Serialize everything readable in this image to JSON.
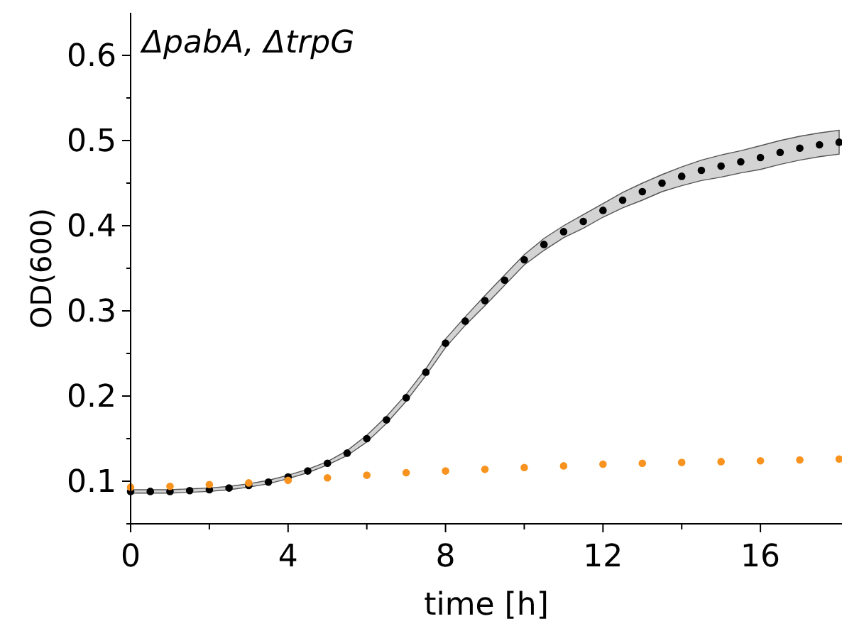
{
  "chart_data": {
    "type": "scatter",
    "title": "ΔpabA, ΔtrpG",
    "xlabel": "time [h]",
    "ylabel": "OD(600)",
    "xlim": [
      0,
      18
    ],
    "ylim": [
      0.05,
      0.65
    ],
    "xticks": [
      0,
      {
        "value": 2,
        "label": null
      },
      4,
      {
        "value": 6,
        "label": null
      },
      8,
      {
        "value": 10,
        "label": null
      },
      12,
      {
        "value": 14,
        "label": null
      },
      16
    ],
    "yticks": [
      {
        "value": 0.05,
        "label": null
      },
      0.1,
      {
        "value": 0.15,
        "label": null
      },
      0.2,
      {
        "value": 0.25,
        "label": null
      },
      0.3,
      {
        "value": 0.35,
        "label": null
      },
      0.4,
      {
        "value": 0.45,
        "label": null
      },
      0.5,
      {
        "value": 0.55,
        "label": null
      },
      0.6
    ],
    "marker": "circle",
    "grid": false,
    "series": [
      {
        "color": "#f7931e",
        "x": [
          0,
          1,
          2,
          3,
          4,
          5,
          6,
          7,
          8,
          9,
          10,
          11,
          12,
          13,
          14,
          15,
          16,
          17,
          18
        ],
        "values": [
          0.093,
          0.094,
          0.096,
          0.098,
          0.101,
          0.104,
          0.107,
          0.11,
          0.112,
          0.114,
          0.116,
          0.118,
          0.12,
          0.121,
          0.122,
          0.123,
          0.124,
          0.125,
          0.126
        ]
      },
      {
        "color": "#000000",
        "x": [
          0,
          0.5,
          1,
          1.5,
          2,
          2.5,
          3,
          3.5,
          4,
          4.5,
          5,
          5.5,
          6,
          6.5,
          7,
          7.5,
          8,
          8.5,
          9,
          9.5,
          10,
          10.5,
          11,
          11.5,
          12,
          12.5,
          13,
          13.5,
          14,
          14.5,
          15,
          15.5,
          16,
          16.5,
          17,
          17.5,
          18
        ],
        "values": [
          0.088,
          0.088,
          0.088,
          0.089,
          0.09,
          0.092,
          0.095,
          0.099,
          0.105,
          0.112,
          0.121,
          0.133,
          0.15,
          0.172,
          0.198,
          0.228,
          0.262,
          0.288,
          0.312,
          0.336,
          0.36,
          0.378,
          0.393,
          0.405,
          0.418,
          0.43,
          0.44,
          0.45,
          0.458,
          0.465,
          0.47,
          0.475,
          0.48,
          0.486,
          0.491,
          0.495,
          0.498
        ],
        "lower": [
          0.086,
          0.086,
          0.086,
          0.087,
          0.088,
          0.09,
          0.093,
          0.097,
          0.103,
          0.11,
          0.119,
          0.13,
          0.146,
          0.168,
          0.194,
          0.224,
          0.257,
          0.283,
          0.306,
          0.33,
          0.354,
          0.371,
          0.386,
          0.397,
          0.41,
          0.421,
          0.43,
          0.44,
          0.447,
          0.453,
          0.457,
          0.462,
          0.466,
          0.472,
          0.477,
          0.481,
          0.484
        ],
        "upper": [
          0.09,
          0.09,
          0.09,
          0.091,
          0.092,
          0.094,
          0.097,
          0.101,
          0.107,
          0.114,
          0.123,
          0.136,
          0.154,
          0.176,
          0.202,
          0.232,
          0.267,
          0.293,
          0.318,
          0.342,
          0.366,
          0.385,
          0.4,
          0.413,
          0.426,
          0.439,
          0.45,
          0.46,
          0.469,
          0.477,
          0.483,
          0.488,
          0.494,
          0.5,
          0.505,
          0.509,
          0.512
        ]
      }
    ]
  }
}
